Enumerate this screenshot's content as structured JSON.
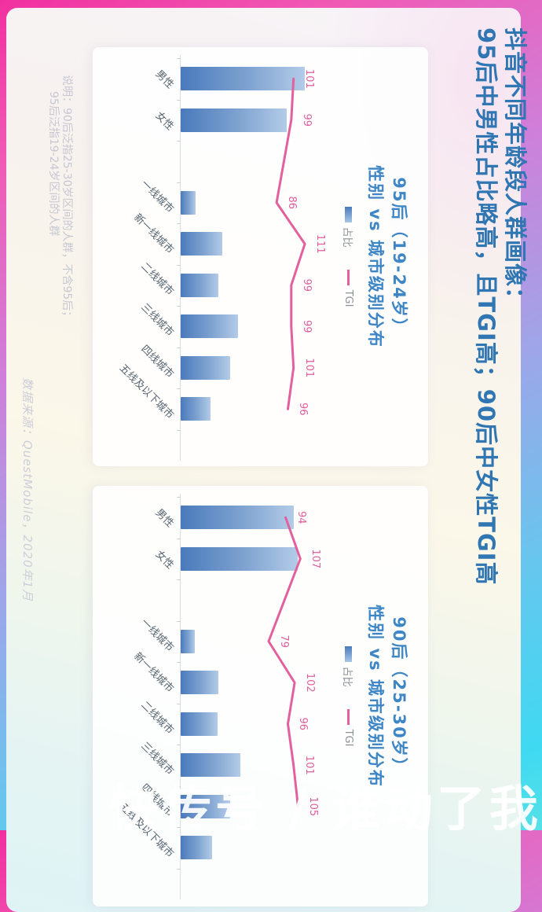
{
  "header": {
    "title_line1": "抖音不同年龄段人群画像：",
    "title_line2": "95后中男性占比略高，且TGI高；90后中女性TGI高"
  },
  "footnotes": {
    "note_line1": "说明：90后泛指25-30岁区间的人群，不含95后；",
    "note_line2": "95后泛指19-24岁区间的人群",
    "source": "数据来源：QuestMobile，2020年1月"
  },
  "watermark": "快传号 / 谁动了我的刀",
  "colors": {
    "main_title_blue": "#2f76b2",
    "panel_title_blue": "#3e86c6",
    "bar_blue_dark": "#4a7abc",
    "bar_blue_light": "#b3cbe8",
    "tgi_line_pink": "#e2609e",
    "category_text": "#56646f",
    "frame_gradient_top": "#f1309f",
    "frame_gradient_bottom": "#3fd9f2"
  },
  "layout_note": "entire landscape infographic is rotated 90° clockwise in the screenshot; second chart is cropped at image edge",
  "chart_data": [
    {
      "type": "bar",
      "title": "95后（19-24岁）性别 vs 城市级别分布",
      "title_line1": "95后（19-24岁）",
      "title_line2": "性别 vs 城市级别分布",
      "legend_position": "top",
      "categories": [
        "男性",
        "女性",
        "一线城市",
        "新一线城市",
        "二线城市",
        "三线城市",
        "四线城市",
        "五线及以下城市"
      ],
      "category_gap_after_index": 1,
      "series": [
        {
          "name": "占比",
          "kind": "bar",
          "estimated": true,
          "unit": "%",
          "values": [
            54,
            46,
            6.5,
            18,
            16.5,
            25,
            21.5,
            13
          ]
        },
        {
          "name": "TGI",
          "kind": "line",
          "estimated": false,
          "values": [
            101,
            99,
            86,
            111,
            99,
            99,
            101,
            96
          ]
        }
      ],
      "value_labels": "TGI values only"
    },
    {
      "type": "bar",
      "title": "90后（25-30岁）性别 vs 城市级别分布",
      "title_line1": "90后（25-30岁）",
      "title_line2": "性别 vs 城市级别分布",
      "legend_position": "top",
      "categories": [
        "男性",
        "女性",
        "一线城市",
        "新一线城市",
        "二线城市",
        "三线城市",
        "四线城市",
        "五线及以下城市"
      ],
      "category_gap_after_index": 1,
      "series": [
        {
          "name": "占比",
          "kind": "bar",
          "estimated": true,
          "unit": "%",
          "values": [
            49,
            51,
            6,
            16.5,
            16,
            26,
            21.5,
            13.5
          ]
        },
        {
          "name": "TGI",
          "kind": "line",
          "estimated": false,
          "values": [
            94,
            107,
            79,
            102,
            96,
            101,
            105,
            null
          ]
        }
      ],
      "value_labels": "TGI values only (last point cropped off screen)"
    }
  ]
}
